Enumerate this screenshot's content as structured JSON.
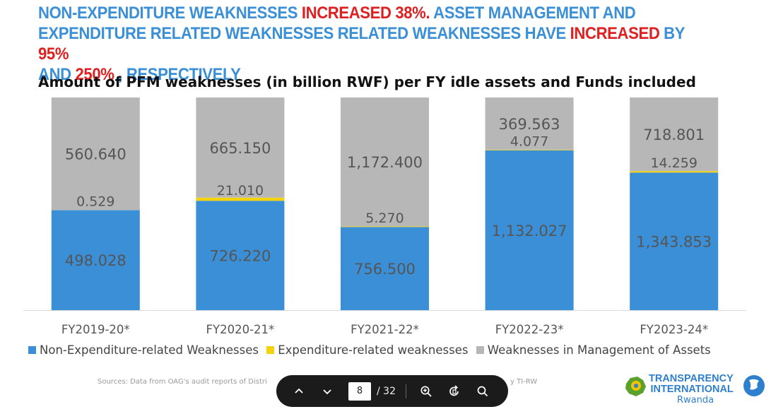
{
  "headline": {
    "p1": "NON-EXPENDITURE  WEAKNESSES ",
    "p2": "INCREASED 38%.",
    "p3": "  ASSET MANAGEMENT  AND EXPENDITURE RELATED WEAKNESSES RELATED WEAKNESSES  HAVE ",
    "p4": "INCREASED",
    "p5": " BY  ",
    "p6": "95%",
    "p7": " AND ",
    "p8": "250%",
    "p9": " , RESPECTIVELY"
  },
  "chart_title": "Amount of PFM weaknesses (in billion RWF) per FY idle assets and Funds included",
  "chart_data": {
    "type": "bar",
    "stacked": true,
    "categories": [
      "FY2019-20*",
      "FY2020-21*",
      "FY2021-22*",
      "FY2022-23*",
      "FY2023-24*"
    ],
    "series": [
      {
        "name": "Non-Expenditure-related Weaknesses",
        "color": "#3a8fd6",
        "values": [
          498.028,
          726.22,
          756.5,
          1132.027,
          1343.853
        ],
        "labels": [
          "498.028",
          "726.220",
          "756.500",
          "1,132.027",
          "1,343.853"
        ]
      },
      {
        "name": "Expenditure-related weaknesses",
        "color": "#f5d20a",
        "values": [
          0.529,
          21.01,
          5.27,
          4.077,
          14.259
        ],
        "labels": [
          "0.529",
          "21.010",
          "5.270",
          "4.077",
          "14.259"
        ]
      },
      {
        "name": "Weaknesses in Management of   Assets",
        "color": "#b7b7b7",
        "values": [
          560.64,
          665.15,
          1172.4,
          369.563,
          718.801
        ],
        "labels": [
          "560.640",
          "665.150",
          "1,172.400",
          "369.563",
          "718.801"
        ]
      }
    ],
    "grid": false,
    "legend": "bottom"
  },
  "sources": "Sources: Data from OAG's audit reports of Distri",
  "sources_tail": "y TI-RW",
  "toolbar": {
    "page_current": "8",
    "page_total": "/ 32"
  },
  "logo": {
    "line1": "TRANSPARENCY",
    "line2": "INTERNATIONAL",
    "sub": "Rwanda"
  },
  "icons": [
    "chevron-up-icon",
    "chevron-down-icon",
    "zoom-in-icon",
    "rotate-icon",
    "search-icon",
    "globe-icon"
  ]
}
